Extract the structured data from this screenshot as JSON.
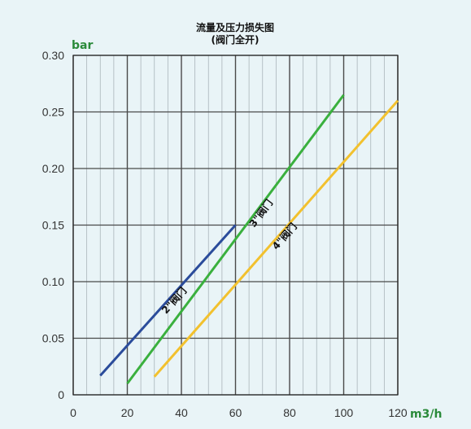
{
  "chart_data": {
    "type": "line",
    "title": "流量及压力损失图",
    "subtitle": "(阀门全开)",
    "xlabel": "m3/h",
    "ylabel": "bar",
    "xlim": [
      0,
      120
    ],
    "ylim": [
      0,
      0.3
    ],
    "x_ticks": [
      0,
      20,
      40,
      60,
      80,
      100,
      120
    ],
    "x_tick_labels": [
      "0",
      "20",
      "40",
      "60",
      "80",
      "100",
      "120"
    ],
    "y_ticks": [
      0,
      0.05,
      0.1,
      0.15,
      0.2,
      0.25,
      0.3
    ],
    "y_tick_labels": [
      "0",
      "0.05",
      "0.10",
      "0.15",
      "0.20",
      "0.25",
      "0.30"
    ],
    "x_minor_step": 5,
    "grid": true,
    "series": [
      {
        "name": "2\"阀门",
        "color": "#2b4c9b",
        "x": [
          10,
          60
        ],
        "y": [
          0.017,
          0.15
        ]
      },
      {
        "name": "3\"阀门",
        "color": "#3ab03e",
        "x": [
          20,
          100
        ],
        "y": [
          0.01,
          0.265
        ]
      },
      {
        "name": "4\"阀门",
        "color": "#f2c12e",
        "x": [
          30,
          120
        ],
        "y": [
          0.016,
          0.26
        ]
      }
    ]
  }
}
